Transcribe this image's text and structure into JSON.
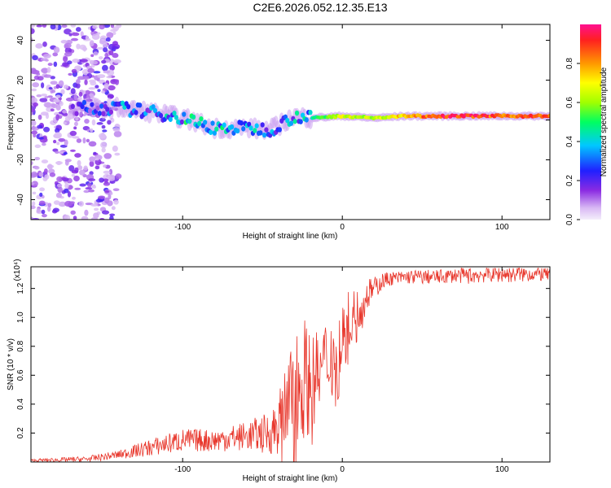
{
  "title": "C2E6.2026.052.12.35.E13",
  "colors": {
    "snr_line": "#e8372c",
    "axis": "#000000",
    "background": "#ffffff"
  },
  "chart_data": [
    {
      "type": "heatmap",
      "xlabel": "Height of straight line (km)",
      "ylabel": "Frequency (Hz)",
      "xlim": [
        -195,
        130
      ],
      "ylim": [
        -50,
        48
      ],
      "xticks": [
        -100,
        0,
        100
      ],
      "yticks": [
        -40,
        -20,
        0,
        20,
        40
      ],
      "colorbar": {
        "label": "Normalized spectral amplitude",
        "range": [
          0,
          1
        ],
        "ticks": [
          0.0,
          0.2,
          0.4,
          0.6,
          0.8
        ]
      },
      "ridge": [
        {
          "x": -160,
          "y": 6,
          "amp": 0.25
        },
        {
          "x": -140,
          "y": 6,
          "amp": 0.35
        },
        {
          "x": -120,
          "y": 4,
          "amp": 0.35
        },
        {
          "x": -100,
          "y": 1,
          "amp": 0.45
        },
        {
          "x": -80,
          "y": -4,
          "amp": 0.45
        },
        {
          "x": -60,
          "y": -4,
          "amp": 0.4
        },
        {
          "x": -45,
          "y": -5,
          "amp": 0.35
        },
        {
          "x": -30,
          "y": 2,
          "amp": 0.4
        },
        {
          "x": -20,
          "y": 1,
          "amp": 0.45
        },
        {
          "x": 0,
          "y": 2,
          "amp": 0.7
        },
        {
          "x": 20,
          "y": 1,
          "amp": 0.65
        },
        {
          "x": 40,
          "y": 2,
          "amp": 0.8
        },
        {
          "x": 60,
          "y": 2,
          "amp": 0.95
        },
        {
          "x": 80,
          "y": 2,
          "amp": 0.95
        },
        {
          "x": 100,
          "y": 2,
          "amp": 0.9
        },
        {
          "x": 130,
          "y": 2,
          "amp": 0.9
        }
      ]
    },
    {
      "type": "line",
      "xlabel": "Height of straight line (km)",
      "ylabel": "SNR (10 * v/v)",
      "ymultiplier": "(x10⁴)",
      "xlim": [
        -195,
        130
      ],
      "ylim": [
        0,
        1.35
      ],
      "xticks": [
        -100,
        0,
        100
      ],
      "yticks": [
        0.2,
        0.4,
        0.6,
        0.8,
        1.0,
        1.2
      ],
      "series": [
        {
          "name": "SNR",
          "x": [
            -195,
            -160,
            -140,
            -120,
            -100,
            -80,
            -60,
            -45,
            -35,
            -30,
            -28,
            -25,
            -20,
            -15,
            -10,
            -5,
            0,
            5,
            10,
            15,
            20,
            25,
            30,
            35,
            40,
            50,
            60,
            70,
            80,
            90,
            100,
            110,
            120,
            130
          ],
          "values": [
            0.01,
            0.02,
            0.05,
            0.1,
            0.15,
            0.15,
            0.18,
            0.2,
            0.35,
            0.55,
            0.5,
            0.6,
            0.55,
            0.6,
            0.7,
            0.75,
            0.85,
            1.0,
            1.05,
            1.15,
            1.2,
            1.25,
            1.27,
            1.27,
            1.28,
            1.28,
            1.28,
            1.29,
            1.29,
            1.3,
            1.3,
            1.3,
            1.3,
            1.3
          ],
          "noise": [
            0.01,
            0.02,
            0.03,
            0.06,
            0.08,
            0.08,
            0.1,
            0.15,
            0.3,
            0.45,
            0.45,
            0.45,
            0.35,
            0.3,
            0.3,
            0.3,
            0.25,
            0.2,
            0.15,
            0.12,
            0.08,
            0.06,
            0.05,
            0.05,
            0.05,
            0.05,
            0.05,
            0.05,
            0.06,
            0.06,
            0.06,
            0.06,
            0.05,
            0.05
          ]
        }
      ]
    }
  ]
}
